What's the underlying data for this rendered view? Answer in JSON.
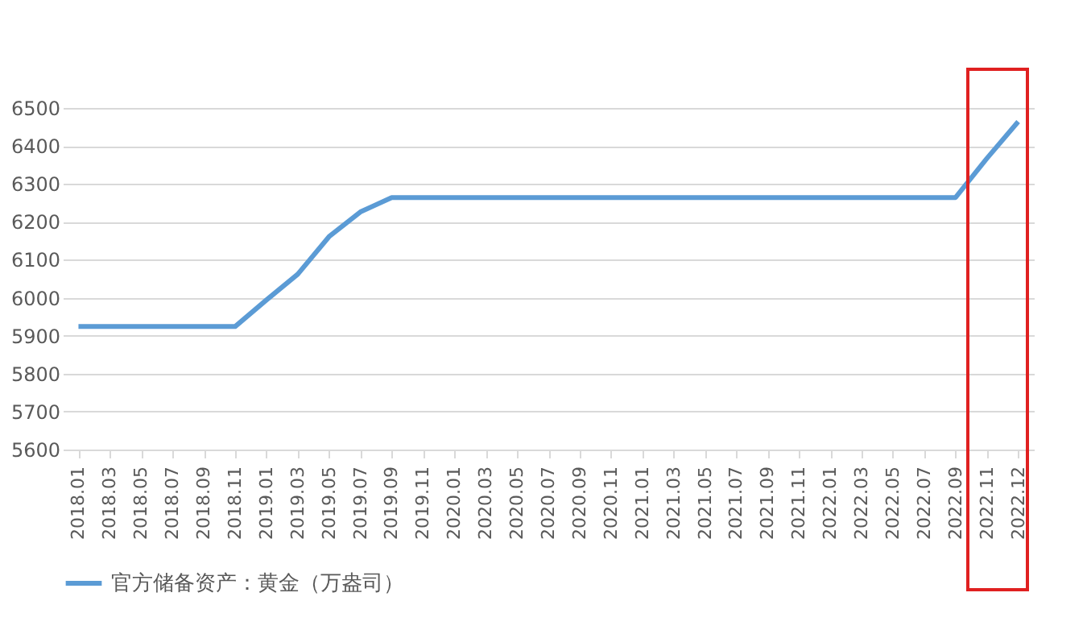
{
  "chart_data": {
    "type": "line",
    "categories": [
      "2018.01",
      "2018.03",
      "2018.05",
      "2018.07",
      "2018.09",
      "2018.11",
      "2019.01",
      "2019.03",
      "2019.05",
      "2019.07",
      "2019.09",
      "2019.11",
      "2020.01",
      "2020.03",
      "2020.05",
      "2020.07",
      "2020.09",
      "2020.11",
      "2021.01",
      "2021.03",
      "2021.05",
      "2021.07",
      "2021.09",
      "2021.11",
      "2022.01",
      "2022.03",
      "2022.05",
      "2022.07",
      "2022.09",
      "2022.11",
      "2022.12"
    ],
    "series": [
      {
        "name": "官方储备资产：黄金（万盎司）",
        "color": "#5b9bd5",
        "values": [
          5924,
          5924,
          5924,
          5924,
          5924,
          5924,
          5994,
          6062,
          6161,
          6226,
          6264,
          6264,
          6264,
          6264,
          6264,
          6264,
          6264,
          6264,
          6264,
          6264,
          6264,
          6264,
          6264,
          6264,
          6264,
          6264,
          6264,
          6264,
          6264,
          6367,
          6464
        ]
      }
    ],
    "ylim": [
      5600,
      6500
    ],
    "yticks": [
      5600,
      5700,
      5800,
      5900,
      6000,
      6100,
      6200,
      6300,
      6400,
      6500
    ],
    "grid": "y",
    "legend": "bottom",
    "marker": "none",
    "line_style": "solid"
  }
}
